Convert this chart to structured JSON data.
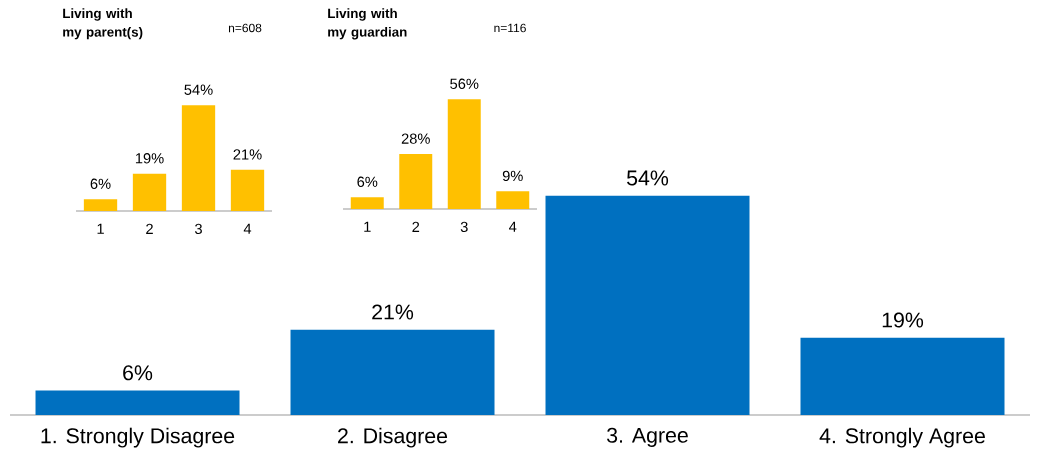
{
  "chart_data": [
    {
      "type": "bar",
      "title": "Living with my parent(s)",
      "annotations": [
        "n=608"
      ],
      "categories": [
        "1",
        "2",
        "3",
        "4"
      ],
      "values": [
        6,
        19,
        54,
        21
      ],
      "value_labels": [
        "6%",
        "19%",
        "54%",
        "21%"
      ],
      "color": "#ffc000"
    },
    {
      "type": "bar",
      "title": "Living with my guardian",
      "annotations": [
        "n=116"
      ],
      "categories": [
        "1",
        "2",
        "3",
        "4"
      ],
      "values": [
        6,
        28,
        56,
        9
      ],
      "value_labels": [
        "6%",
        "28%",
        "56%",
        "9%"
      ],
      "color": "#ffc000"
    },
    {
      "type": "bar",
      "categories": [
        "1. Strongly Disagree",
        "2. Disagree",
        "3. Agree",
        "4. Strongly Agree"
      ],
      "values": [
        6,
        21,
        54,
        19
      ],
      "value_labels": [
        "6%",
        "21%",
        "54%",
        "19%"
      ],
      "color": "#0070c0"
    }
  ]
}
